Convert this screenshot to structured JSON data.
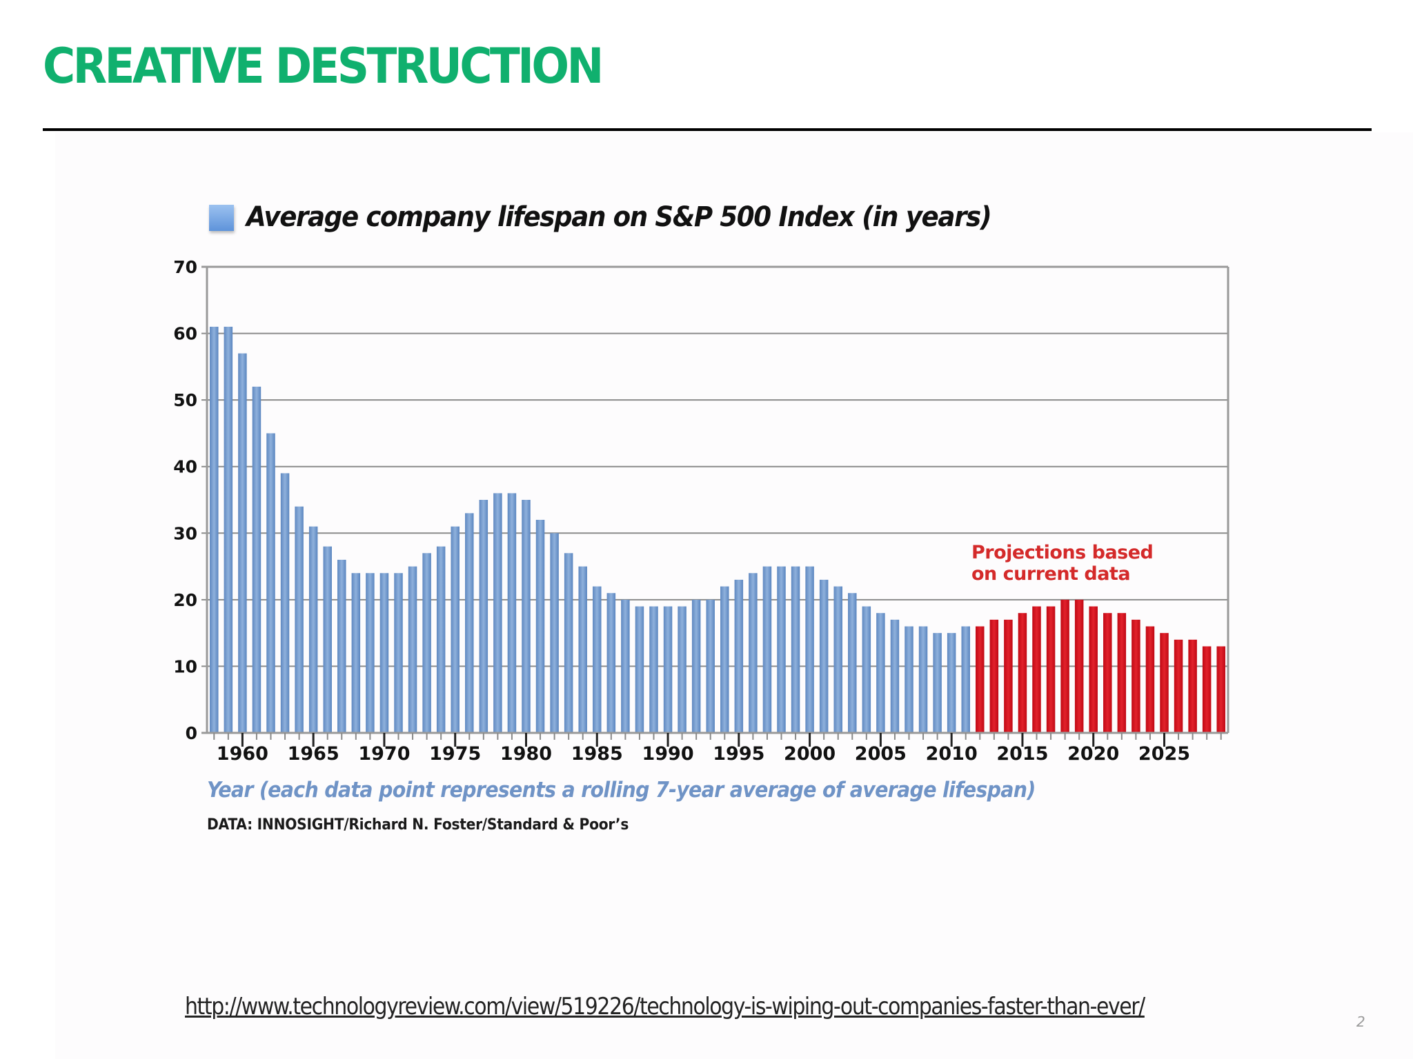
{
  "slide": {
    "title": "CREATIVE DESTRUCTION",
    "source_url": "http://www.technologyreview.com/view/519226/technology-is-wiping-out-companies-faster-than-ever/",
    "page_number": "2"
  },
  "colors": {
    "title": "#10b06e",
    "historical_bar": "#6b94c8",
    "projected_bar": "#d0101c",
    "projection_label": "#d42a2a",
    "x_caption": "#6f93c6"
  },
  "chart_data": {
    "type": "bar",
    "title": "Average company lifespan on S&P 500 Index (in years)",
    "legend": [
      {
        "label": "Average company lifespan on S&P 500 Index (in years)",
        "color": "#6b94c8"
      }
    ],
    "legend_position": "top-left",
    "xlabel": "Year (each data point represents a rolling 7-year average of average lifespan)",
    "ylabel": "",
    "source": "DATA: INNOSIGHT/Richard N. Foster/Standard & Poor’s",
    "annotation": [
      "Projections based",
      "on current data"
    ],
    "ylim": [
      0,
      70
    ],
    "yticks": [
      0,
      10,
      20,
      30,
      40,
      50,
      60,
      70
    ],
    "xticks": [
      1960,
      1965,
      1970,
      1975,
      1980,
      1985,
      1990,
      1995,
      2000,
      2005,
      2010,
      2015,
      2020,
      2025
    ],
    "grid": true,
    "categories": [
      1958,
      1959,
      1960,
      1961,
      1962,
      1963,
      1964,
      1965,
      1966,
      1967,
      1968,
      1969,
      1970,
      1971,
      1972,
      1973,
      1974,
      1975,
      1976,
      1977,
      1978,
      1979,
      1980,
      1981,
      1982,
      1983,
      1984,
      1985,
      1986,
      1987,
      1988,
      1989,
      1990,
      1991,
      1992,
      1993,
      1994,
      1995,
      1996,
      1997,
      1998,
      1999,
      2000,
      2001,
      2002,
      2003,
      2004,
      2005,
      2006,
      2007,
      2008,
      2009,
      2010,
      2011,
      2012,
      2013,
      2014,
      2015,
      2016,
      2017,
      2018,
      2019,
      2020,
      2021,
      2022,
      2023,
      2024,
      2025,
      2026,
      2027,
      2028,
      2029
    ],
    "series": [
      {
        "name": "Historical",
        "values": [
          61,
          61,
          57,
          52,
          45,
          39,
          34,
          31,
          28,
          26,
          24,
          24,
          24,
          24,
          25,
          27,
          28,
          31,
          33,
          35,
          36,
          36,
          35,
          32,
          30,
          27,
          25,
          22,
          21,
          20,
          19,
          19,
          19,
          19,
          20,
          20,
          22,
          23,
          24,
          25,
          25,
          25,
          25,
          23,
          22,
          21,
          19,
          18,
          17,
          16,
          16,
          15,
          15,
          16,
          null,
          null,
          null,
          null,
          null,
          null,
          null,
          null,
          null,
          null,
          null,
          null,
          null,
          null,
          null,
          null,
          null,
          null
        ]
      },
      {
        "name": "Projections based on current data",
        "values": [
          null,
          null,
          null,
          null,
          null,
          null,
          null,
          null,
          null,
          null,
          null,
          null,
          null,
          null,
          null,
          null,
          null,
          null,
          null,
          null,
          null,
          null,
          null,
          null,
          null,
          null,
          null,
          null,
          null,
          null,
          null,
          null,
          null,
          null,
          null,
          null,
          null,
          null,
          null,
          null,
          null,
          null,
          null,
          null,
          null,
          null,
          null,
          null,
          null,
          null,
          null,
          null,
          null,
          null,
          16,
          17,
          17,
          18,
          19,
          19,
          20,
          20,
          19,
          18,
          18,
          17,
          16,
          15,
          14,
          14,
          13,
          13
        ]
      }
    ]
  }
}
